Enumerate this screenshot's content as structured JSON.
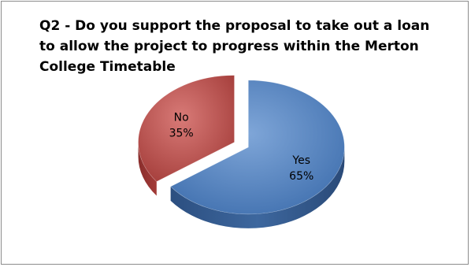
{
  "chart_data": {
    "type": "pie",
    "title": "Q2 - Do you support the proposal to take out a loan to allow the project to progress within the Merton College Timetable",
    "slices": [
      {
        "label": "Yes",
        "value": 65,
        "display": "65%",
        "color": "#4f81bd"
      },
      {
        "label": "No",
        "value": 35,
        "display": "35%",
        "color": "#c0504d"
      }
    ],
    "three_d": true,
    "exploded": true,
    "legend": "none"
  }
}
